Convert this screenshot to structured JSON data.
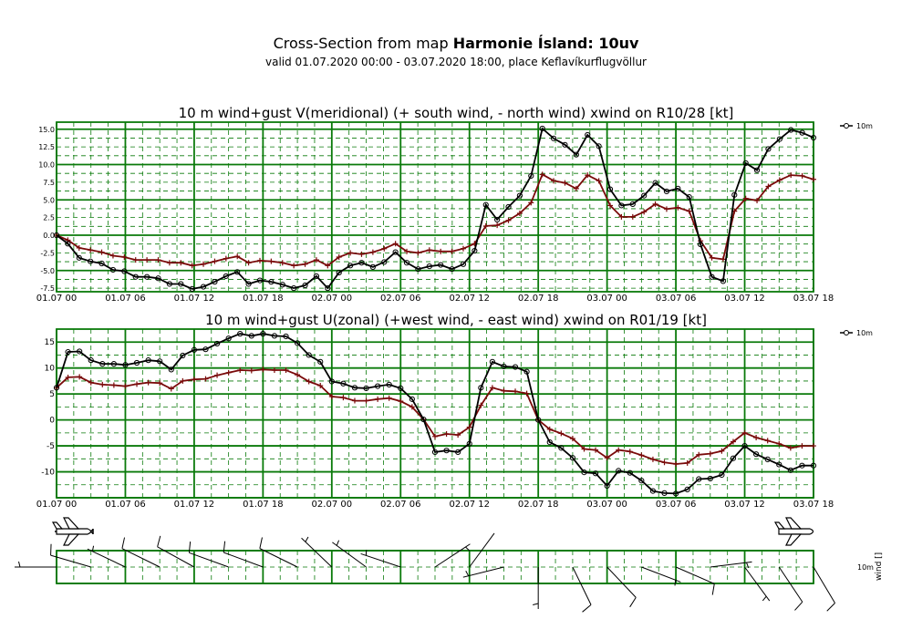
{
  "header": {
    "title_prefix": "Cross-Section from map ",
    "title_bold": "Harmonie Ísland: 10uv",
    "subtitle": "valid 01.07.2020 00:00 - 03.07.2020 18:00, place Keflavíkurflugvöllur"
  },
  "colors": {
    "grid": "#0a7a0a",
    "gust": "#000000",
    "wind": "#7a0a0a"
  },
  "x_ticks": [
    "01.07 00",
    "01.07 06",
    "01.07 12",
    "01.07 18",
    "02.07 00",
    "02.07 06",
    "02.07 12",
    "02.07 18",
    "03.07 00",
    "03.07 06",
    "03.07 12",
    "03.07 18"
  ],
  "chart_data": [
    {
      "type": "line",
      "title": "10 m wind+gust V(meridional) (+ south wind, - north wind) xwind on R10/28 [kt]",
      "x_range_hours": [
        0,
        66
      ],
      "ylim": [
        -8,
        16
      ],
      "y_ticks": [
        "15.0",
        "12.5",
        "10.0",
        "7.5",
        "5.0",
        "2.5",
        "0.0",
        "-2.5",
        "-5.0",
        "-7.5"
      ],
      "y_tick_values": [
        15,
        12.5,
        10,
        7.5,
        5,
        2.5,
        0,
        -2.5,
        -5,
        -7.5
      ],
      "legend": "10m",
      "series": [
        {
          "name": "10m",
          "marker": "circle",
          "values": [
            0,
            -1.2,
            -3.2,
            -3.7,
            -4,
            -4.9,
            -5.1,
            -5.9,
            -5.9,
            -6.1,
            -6.9,
            -6.9,
            -7.6,
            -7.3,
            -6.6,
            -5.8,
            -5.2,
            -6.9,
            -6.4,
            -6.6,
            -7,
            -7.5,
            -7.1,
            -5.8,
            -7.5,
            -5.3,
            -4.3,
            -3.9,
            -4.5,
            -3.8,
            -2.4,
            -3.9,
            -4.8,
            -4.4,
            -4.2,
            -4.8,
            -4.1,
            -2.2,
            4.3,
            2.2,
            4,
            5.6,
            8.4,
            15.1,
            13.7,
            12.8,
            11.4,
            14.2,
            12.6,
            6.5,
            4.2,
            4.4,
            5.6,
            7.4,
            6.2,
            6.6,
            5.4,
            -1.3,
            -5.9,
            -6.5,
            5.7,
            10.2,
            9.2,
            12.2,
            13.6,
            14.9,
            14.5,
            13.8
          ]
        },
        {
          "name": "",
          "marker": "plus",
          "values": [
            0,
            -0.7,
            -1.8,
            -2.1,
            -2.4,
            -2.9,
            -3.1,
            -3.5,
            -3.5,
            -3.5,
            -3.9,
            -3.9,
            -4.3,
            -4.1,
            -3.7,
            -3.3,
            -3,
            -3.9,
            -3.6,
            -3.7,
            -3.9,
            -4.3,
            -4.1,
            -3.5,
            -4.3,
            -3.1,
            -2.5,
            -2.7,
            -2.4,
            -1.9,
            -1.2,
            -2.3,
            -2.5,
            -2.1,
            -2.3,
            -2.3,
            -1.9,
            -1.2,
            1.3,
            1.4,
            2.1,
            3.1,
            4.6,
            8.6,
            7.7,
            7.4,
            6.6,
            8.5,
            7.7,
            4.2,
            2.6,
            2.6,
            3.3,
            4.4,
            3.7,
            3.9,
            3.4,
            -0.8,
            -3.2,
            -3.4,
            3.4,
            5.2,
            4.9,
            6.9,
            7.8,
            8.5,
            8.4,
            7.9
          ]
        }
      ]
    },
    {
      "type": "line",
      "title": "10 m wind+gust U(zonal) (+west wind, - east wind) xwind on R01/19 [kt]",
      "x_range_hours": [
        0,
        66
      ],
      "ylim": [
        -15,
        17.5
      ],
      "y_ticks": [
        "15",
        "10",
        "5",
        "0",
        "-5",
        "-10"
      ],
      "y_tick_values": [
        15,
        10,
        5,
        0,
        -5,
        -10
      ],
      "legend": "10m",
      "series": [
        {
          "name": "10m",
          "marker": "circle",
          "values": [
            6.2,
            13.1,
            13.2,
            11.5,
            10.8,
            10.8,
            10.6,
            11,
            11.5,
            11.3,
            9.7,
            12.4,
            13.5,
            13.6,
            14.7,
            15.7,
            16.6,
            16.2,
            16.6,
            16.2,
            16.1,
            14.8,
            12.5,
            11.2,
            7.4,
            7,
            6.2,
            6.1,
            6.5,
            6.8,
            6.1,
            4,
            0.1,
            -6.2,
            -5.9,
            -6.2,
            -4.6,
            6.2,
            11.2,
            10.3,
            10.2,
            9.3,
            0,
            -4.3,
            -5.4,
            -7.3,
            -10.1,
            -10.3,
            -12.7,
            -9.8,
            -10.2,
            -11.7,
            -13.7,
            -14.1,
            -14.2,
            -13.4,
            -11.4,
            -11.3,
            -10.6,
            -7.4,
            -5,
            -6.6,
            -7.6,
            -8.6,
            -9.7,
            -8.8,
            -8.8
          ]
        },
        {
          "name": "",
          "marker": "plus",
          "values": [
            6.2,
            8.2,
            8.3,
            7.2,
            6.8,
            6.7,
            6.5,
            6.9,
            7.2,
            7.1,
            6,
            7.5,
            7.8,
            7.9,
            8.6,
            9.1,
            9.6,
            9.5,
            9.7,
            9.6,
            9.6,
            8.7,
            7.4,
            6.6,
            4.5,
            4.3,
            3.7,
            3.7,
            4,
            4.2,
            3.6,
            2.5,
            0.1,
            -3.2,
            -2.7,
            -2.9,
            -1.4,
            2.8,
            6.2,
            5.6,
            5.5,
            5.1,
            0,
            -1.8,
            -2.6,
            -3.6,
            -5.6,
            -5.8,
            -7.3,
            -5.8,
            -6.1,
            -6.8,
            -7.6,
            -8.2,
            -8.5,
            -8.3,
            -6.7,
            -6.5,
            -6,
            -4.2,
            -2.5,
            -3.4,
            -4,
            -4.6,
            -5.4,
            -5,
            -5
          ]
        }
      ]
    }
  ],
  "barb_panel": {
    "legend_left": "10m",
    "legend_right": "wind []",
    "aircraft": [
      "left-aircraft-icon",
      "right-aircraft-icon"
    ]
  }
}
